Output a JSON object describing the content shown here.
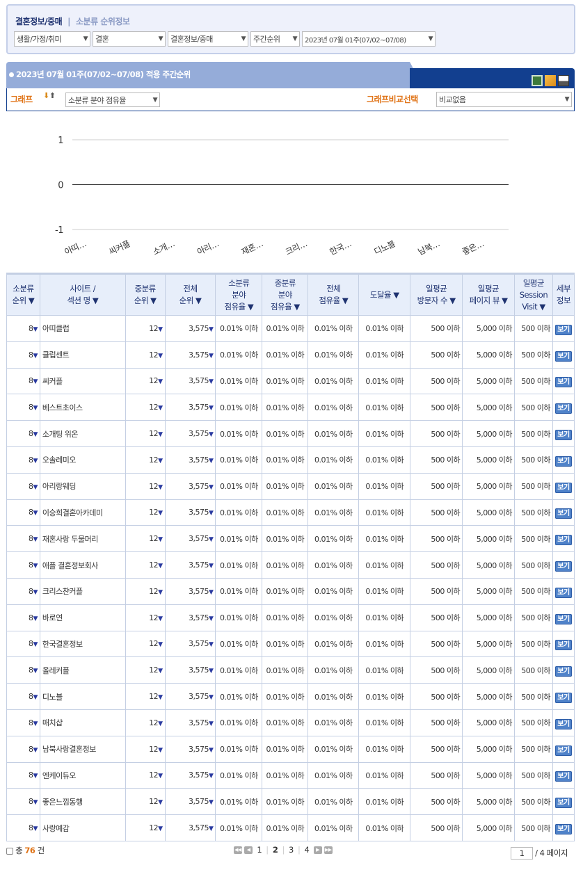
{
  "breadcrumb": {
    "category": "결혼정보/중매",
    "separator": "|",
    "page": "소분류 순위정보"
  },
  "filters": [
    "생활/가정/취미",
    "결혼",
    "결혼정보/중매",
    "주간순위",
    "2023년 07월 01주(07/02~07/08)"
  ],
  "panel": {
    "title": "2023년 07월 01주(07/02~07/08) 적용 주간순위",
    "icons": [
      "excel-icon",
      "export-icon",
      "print-icon"
    ]
  },
  "graph_bar": {
    "graph_label": "그래프",
    "graph_select": "소분류 분야 점유율",
    "compare_label": "그래프비교선택",
    "compare_select": "비교없음"
  },
  "chart_data": {
    "type": "line",
    "yticks": [
      "1",
      "0",
      "-1"
    ],
    "ylim": [
      -1,
      1
    ],
    "categories": [
      "아띠…",
      "씨커플",
      "소개…",
      "아리…",
      "재혼…",
      "크리…",
      "한국…",
      "디노블",
      "남북…",
      "좋은…"
    ],
    "grid": true
  },
  "table": {
    "headers": [
      "소분류\n순위 ▼",
      "사이트 /\n섹션 명 ▼",
      "중분류\n순위 ▼",
      "전체\n순위 ▼",
      "소분류\n분야\n점유율 ▼",
      "중분류\n분야\n점유율 ▼",
      "전체\n점유율 ▼",
      "도달율 ▼",
      "일평균\n방문자 수 ▼",
      "일평균\n페이지 뷰 ▼",
      "일평균\nSession\nVisit ▼",
      "세부\n정보"
    ],
    "rows": [
      [
        "8",
        "아띠클럽",
        "12",
        "3,575",
        "0.01% 이하",
        "0.01% 이하",
        "0.01% 이하",
        "0.01% 이하",
        "500 이하",
        "5,000 이하",
        "500 이하",
        "보기"
      ],
      [
        "8",
        "클럽센트",
        "12",
        "3,575",
        "0.01% 이하",
        "0.01% 이하",
        "0.01% 이하",
        "0.01% 이하",
        "500 이하",
        "5,000 이하",
        "500 이하",
        "보기"
      ],
      [
        "8",
        "씨커플",
        "12",
        "3,575",
        "0.01% 이하",
        "0.01% 이하",
        "0.01% 이하",
        "0.01% 이하",
        "500 이하",
        "5,000 이하",
        "500 이하",
        "보기"
      ],
      [
        "8",
        "베스트초이스",
        "12",
        "3,575",
        "0.01% 이하",
        "0.01% 이하",
        "0.01% 이하",
        "0.01% 이하",
        "500 이하",
        "5,000 이하",
        "500 이하",
        "보기"
      ],
      [
        "8",
        "소개팅 위온",
        "12",
        "3,575",
        "0.01% 이하",
        "0.01% 이하",
        "0.01% 이하",
        "0.01% 이하",
        "500 이하",
        "5,000 이하",
        "500 이하",
        "보기"
      ],
      [
        "8",
        "오솔레미오",
        "12",
        "3,575",
        "0.01% 이하",
        "0.01% 이하",
        "0.01% 이하",
        "0.01% 이하",
        "500 이하",
        "5,000 이하",
        "500 이하",
        "보기"
      ],
      [
        "8",
        "아리랑웨딩",
        "12",
        "3,575",
        "0.01% 이하",
        "0.01% 이하",
        "0.01% 이하",
        "0.01% 이하",
        "500 이하",
        "5,000 이하",
        "500 이하",
        "보기"
      ],
      [
        "8",
        "이승희결혼아카데미",
        "12",
        "3,575",
        "0.01% 이하",
        "0.01% 이하",
        "0.01% 이하",
        "0.01% 이하",
        "500 이하",
        "5,000 이하",
        "500 이하",
        "보기"
      ],
      [
        "8",
        "재혼사랑 두물머리",
        "12",
        "3,575",
        "0.01% 이하",
        "0.01% 이하",
        "0.01% 이하",
        "0.01% 이하",
        "500 이하",
        "5,000 이하",
        "500 이하",
        "보기"
      ],
      [
        "8",
        "애플 결혼정보회사",
        "12",
        "3,575",
        "0.01% 이하",
        "0.01% 이하",
        "0.01% 이하",
        "0.01% 이하",
        "500 이하",
        "5,000 이하",
        "500 이하",
        "보기"
      ],
      [
        "8",
        "크리스챤커플",
        "12",
        "3,575",
        "0.01% 이하",
        "0.01% 이하",
        "0.01% 이하",
        "0.01% 이하",
        "500 이하",
        "5,000 이하",
        "500 이하",
        "보기"
      ],
      [
        "8",
        "바로연",
        "12",
        "3,575",
        "0.01% 이하",
        "0.01% 이하",
        "0.01% 이하",
        "0.01% 이하",
        "500 이하",
        "5,000 이하",
        "500 이하",
        "보기"
      ],
      [
        "8",
        "한국결혼정보",
        "12",
        "3,575",
        "0.01% 이하",
        "0.01% 이하",
        "0.01% 이하",
        "0.01% 이하",
        "500 이하",
        "5,000 이하",
        "500 이하",
        "보기"
      ],
      [
        "8",
        "올레커플",
        "12",
        "3,575",
        "0.01% 이하",
        "0.01% 이하",
        "0.01% 이하",
        "0.01% 이하",
        "500 이하",
        "5,000 이하",
        "500 이하",
        "보기"
      ],
      [
        "8",
        "디노블",
        "12",
        "3,575",
        "0.01% 이하",
        "0.01% 이하",
        "0.01% 이하",
        "0.01% 이하",
        "500 이하",
        "5,000 이하",
        "500 이하",
        "보기"
      ],
      [
        "8",
        "매치샵",
        "12",
        "3,575",
        "0.01% 이하",
        "0.01% 이하",
        "0.01% 이하",
        "0.01% 이하",
        "500 이하",
        "5,000 이하",
        "500 이하",
        "보기"
      ],
      [
        "8",
        "남북사랑결혼정보",
        "12",
        "3,575",
        "0.01% 이하",
        "0.01% 이하",
        "0.01% 이하",
        "0.01% 이하",
        "500 이하",
        "5,000 이하",
        "500 이하",
        "보기"
      ],
      [
        "8",
        "엔케이듀오",
        "12",
        "3,575",
        "0.01% 이하",
        "0.01% 이하",
        "0.01% 이하",
        "0.01% 이하",
        "500 이하",
        "5,000 이하",
        "500 이하",
        "보기"
      ],
      [
        "8",
        "좋은느낌동행",
        "12",
        "3,575",
        "0.01% 이하",
        "0.01% 이하",
        "0.01% 이하",
        "0.01% 이하",
        "500 이하",
        "5,000 이하",
        "500 이하",
        "보기"
      ],
      [
        "8",
        "사랑예감",
        "12",
        "3,575",
        "0.01% 이하",
        "0.01% 이하",
        "0.01% 이하",
        "0.01% 이하",
        "500 이하",
        "5,000 이하",
        "500 이하",
        "보기"
      ]
    ]
  },
  "footer": {
    "total_prefix": "총",
    "total_count": "76",
    "total_suffix": "건",
    "pages": [
      "1",
      "2",
      "3",
      "4"
    ],
    "current_page": "2",
    "page_input": "1",
    "page_total": "/ 4 페이지"
  }
}
